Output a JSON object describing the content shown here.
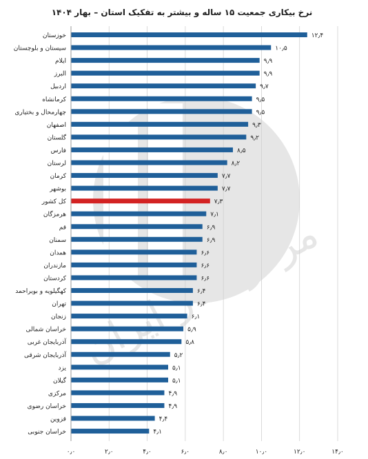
{
  "chart_data": {
    "type": "bar",
    "orientation": "horizontal",
    "title": "نرخ بیکاری جمعیت ۱۵ ساله و بیشتر به تفکیک استان – بهار ۱۴۰۴",
    "categories": [
      "خوزستان",
      "سیستان و بلوچستان",
      "ایلام",
      "البرز",
      "اردبیل",
      "کرمانشاه",
      "چهارمحال و بختیاری",
      "اصفهان",
      "گلستان",
      "فارس",
      "لرستان",
      "کرمان",
      "بوشهر",
      "کل کشور",
      "هرمزگان",
      "قم",
      "سمنان",
      "همدان",
      "مازندران",
      "کردستان",
      "کهگیلویه و بویراحمد",
      "تهران",
      "زنجان",
      "خراسان شمالی",
      "آذربایجان غربی",
      "آذربایجان شرقی",
      "یزد",
      "گیلان",
      "مرکزی",
      "خراسان رضوی",
      "قزوین",
      "خراسان جنوبی"
    ],
    "values": [
      12.4,
      10.5,
      9.9,
      9.9,
      9.7,
      9.5,
      9.5,
      9.3,
      9.2,
      8.5,
      8.2,
      7.7,
      7.7,
      7.3,
      7.1,
      6.9,
      6.9,
      6.6,
      6.6,
      6.6,
      6.4,
      6.4,
      6.1,
      5.9,
      5.8,
      5.2,
      5.1,
      5.1,
      4.9,
      4.9,
      4.4,
      4.1
    ],
    "value_labels": [
      "۱۲٫۴",
      "۱۰٫۵",
      "۹٫۹",
      "۹٫۹",
      "۹٫۷",
      "۹٫۵",
      "۹٫۵",
      "۹٫۳",
      "۹٫۲",
      "۸٫۵",
      "۸٫۲",
      "۷٫۷",
      "۷٫۷",
      "۷٫۳",
      "۷٫۱",
      "۶٫۹",
      "۶٫۹",
      "۶٫۶",
      "۶٫۶",
      "۶٫۶",
      "۶٫۴",
      "۶٫۴",
      "۶٫۱",
      "۵٫۹",
      "۵٫۸",
      "۵٫۲",
      "۵٫۱",
      "۵٫۱",
      "۴٫۹",
      "۴٫۹",
      "۴٫۴",
      "۴٫۱"
    ],
    "highlight_category": "کل کشور",
    "xlim": [
      0,
      14
    ],
    "xticks": [
      0,
      2,
      4,
      6,
      8,
      10,
      12,
      14
    ],
    "xtick_labels": [
      "۰٫۰",
      "۲٫۰",
      "۴٫۰",
      "۶٫۰",
      "۸٫۰",
      "۱۰٫۰",
      "۱۲٫۰",
      "۱۴٫۰"
    ],
    "grid": "vertical",
    "legend": "none",
    "colors": {
      "bar": "#1f5f99",
      "highlight": "#d32222",
      "grid": "#d0d0d0",
      "text": "#222222",
      "watermark": "#e4e4e4"
    }
  },
  "watermark": {
    "text": "مرکز آمار ایران"
  }
}
